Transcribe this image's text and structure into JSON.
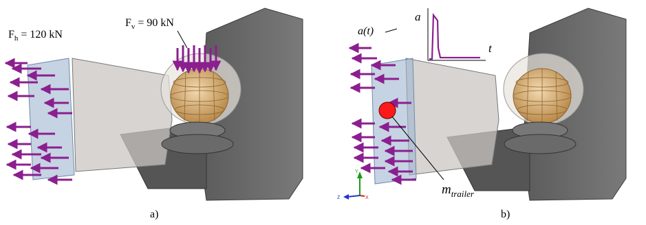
{
  "panel_a": {
    "force_h": {
      "sym": "F",
      "sub": "h",
      "value": " = 120 kN"
    },
    "force_v": {
      "sym": "F",
      "sub": "v",
      "value": " = 90 kN"
    },
    "caption": "a)"
  },
  "panel_b": {
    "accel_label": "a(t)",
    "graph_y_label": "a",
    "graph_x_label": "t",
    "mass": {
      "sym": "m",
      "sub": "trailer"
    },
    "axis_triad": {
      "y": "Y",
      "z": "Z",
      "x": "X"
    },
    "caption": "b)"
  },
  "colors": {
    "arrow": "#8b1f8f",
    "mass": "#ff1a1a",
    "housing": "#6b6b6b",
    "plate": "#9fb6d1",
    "ball": "#d9b07a"
  }
}
